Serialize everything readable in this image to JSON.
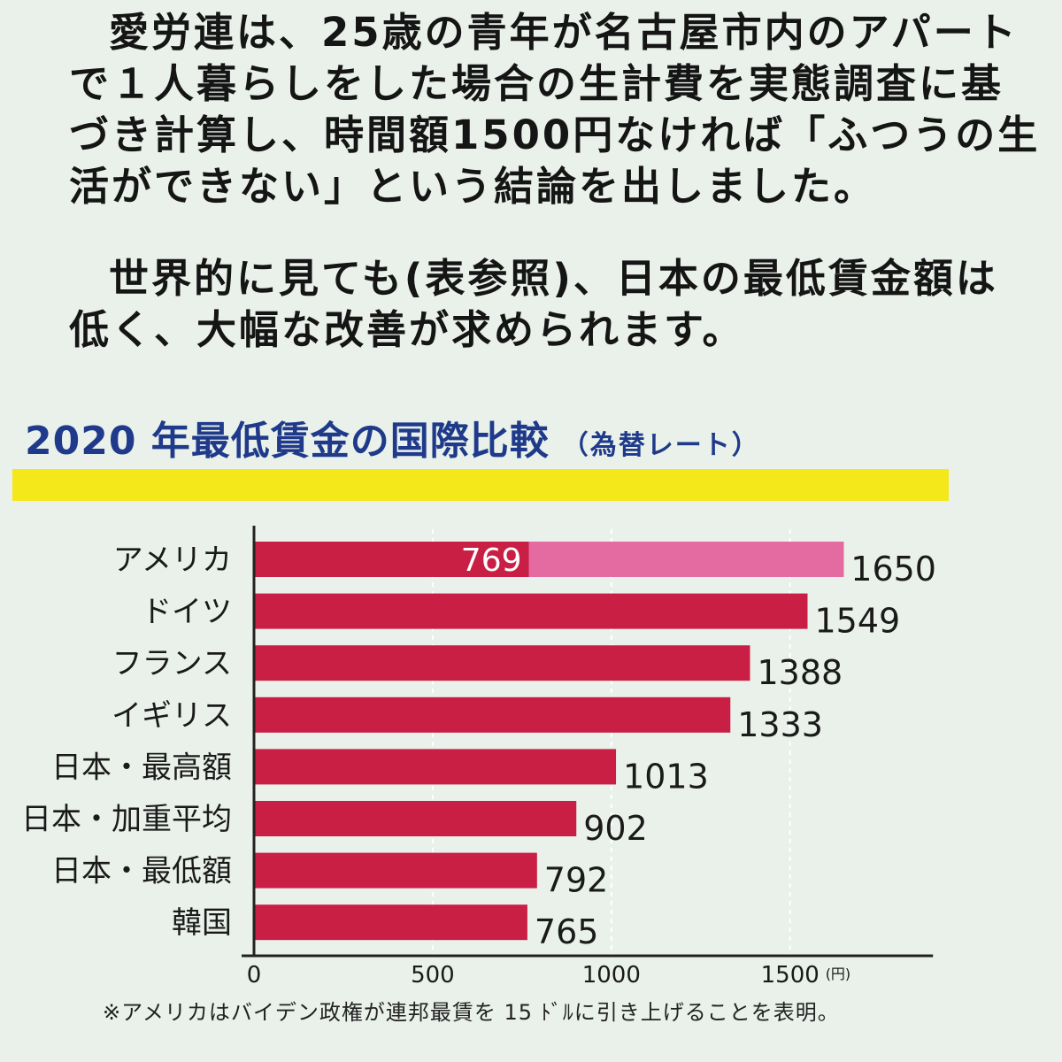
{
  "text": {
    "paragraph1": [
      "愛労連は、25歳の青年が名古屋市内のアパート",
      "で１人暮らしをした場合の生計費を実態調査に基",
      "づき計算し、時間額1500円なければ「ふつうの生",
      "活ができない」という結論を出しました。"
    ],
    "paragraph2": [
      "世界的に見ても(表参照)、日本の最低賃金額は",
      "低く、大幅な改善が求められます。"
    ]
  },
  "chart_data": {
    "type": "bar",
    "orientation": "horizontal",
    "title": "2020 年最低賃金の国際比較",
    "subtitle": "（為替レート）",
    "unit": "(円)",
    "categories": [
      "アメリカ",
      "ドイツ",
      "フランス",
      "イギリス",
      "日本・最高額",
      "日本・加重平均",
      "日本・最低額",
      "韓国"
    ],
    "values": [
      1650,
      1549,
      1388,
      1333,
      1013,
      902,
      792,
      765
    ],
    "inner_segment": {
      "category": "アメリカ",
      "value": 769,
      "label": "769"
    },
    "xlim": [
      0,
      1900
    ],
    "ticks": [
      0,
      500,
      1000,
      1500
    ],
    "tick_labels": [
      "0",
      "500",
      "1000",
      "1500"
    ],
    "grid": "dashed vertical at 500, 1000, 1500",
    "colors": {
      "bar": "#c91f45",
      "inner_segment": "#e46aa2",
      "axis": "#222222"
    }
  },
  "footnote": "※アメリカはバイデン政権が連邦最賃を 15 ﾄﾞﾙに引き上げることを表明。"
}
